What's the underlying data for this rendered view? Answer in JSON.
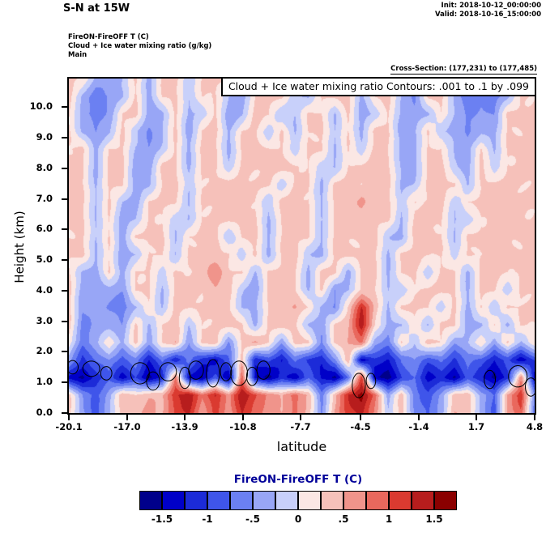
{
  "header": {
    "title": "S-N at 15W",
    "init_line": "Init: 2018-10-12_00:00:00",
    "valid_line": "Valid: 2018-10-16_15:00:00",
    "field_line1": "FireON-FireOFF T   (C)",
    "field_line2": "Cloud + Ice water mixing ratio   (g/kg)",
    "field_line3": "Main",
    "cross_section": "Cross-Section: (177,231) to (177,485)"
  },
  "plot": {
    "contour_note": "Cloud + Ice water mixing ratio Contours: .001 to .1 by .099",
    "xlabel": "latitude",
    "ylabel": "Height (km)",
    "x_ticks": [
      "-20.1",
      "-17.0",
      "-13.9",
      "-10.8",
      "-7.7",
      "-4.5",
      "-1.4",
      "1.7",
      "4.8"
    ],
    "y_ticks": [
      "0.0",
      "1.0",
      "2.0",
      "3.0",
      "4.0",
      "5.0",
      "6.0",
      "7.0",
      "8.0",
      "9.0",
      "10.0"
    ]
  },
  "colorbar": {
    "title": "FireON-FireOFF T  (C)",
    "labels": [
      "-1.5",
      "-1",
      "-.5",
      "0",
      ".5",
      "1",
      "1.5"
    ],
    "colors": [
      "#00008b",
      "#0000c8",
      "#1c2bd8",
      "#3f55ea",
      "#6b80f2",
      "#98a6f6",
      "#c8d0fa",
      "#fbe7e4",
      "#f6c1ba",
      "#f0948b",
      "#e9685d",
      "#da3a30",
      "#b71d1d",
      "#8b0000"
    ]
  },
  "chart_data": {
    "type": "heatmap",
    "title": "FireON-FireOFF T (C), S-N cross-section at 15W",
    "xlabel": "latitude",
    "ylabel": "Height (km)",
    "x_range": [
      -20.1,
      4.8
    ],
    "y_range": [
      0,
      10.94
    ],
    "levels": [
      -1.5,
      -1.25,
      -1.0,
      -0.75,
      -0.5,
      -0.25,
      0,
      0.25,
      0.5,
      0.75,
      1.0,
      1.25,
      1.5
    ],
    "units": "C",
    "grid_note": "values[row][col]; row 0 = top of plot (10.94 km), last row = surface; col 0 = lat -20.1, last col = lat 4.8",
    "values": [
      [
        0.3,
        0.2,
        -0.3,
        -0.4,
        -0.3,
        0.3,
        -0.3,
        0.3,
        0.3,
        -0.2,
        0.3,
        0.3,
        0.3,
        -0.3,
        0.3,
        0.3,
        0.3,
        0.3,
        -0.2,
        0.3,
        0.3,
        0.3,
        -0.3,
        0.3,
        0.3,
        -0.4,
        -0.3,
        0.3,
        0.3,
        -0.4,
        -0.6,
        -0.4,
        -0.6,
        -0.5,
        0.3,
        0.3
      ],
      [
        0.3,
        -0.3,
        -0.6,
        -0.5,
        -0.3,
        0.3,
        -0.4,
        0.3,
        0.3,
        -0.3,
        0.3,
        0.3,
        -0.3,
        -0.4,
        0.3,
        0.3,
        0.3,
        -0.2,
        -0.3,
        0.3,
        0.3,
        0.3,
        -0.3,
        0.3,
        0.3,
        -0.3,
        -0.5,
        0.3,
        0.3,
        -0.3,
        -0.7,
        -0.5,
        -0.6,
        -0.4,
        0.3,
        0.3
      ],
      [
        0.3,
        -0.4,
        -0.7,
        -0.4,
        0.3,
        0.3,
        -0.4,
        -0.3,
        0.3,
        -0.3,
        -0.2,
        0.3,
        -0.4,
        -0.3,
        0.3,
        0.3,
        -0.2,
        -0.3,
        0.3,
        0.3,
        -0.3,
        0.3,
        -0.4,
        -0.2,
        0.3,
        -0.3,
        -0.5,
        -0.3,
        0.3,
        -0.3,
        -0.6,
        -0.4,
        -0.5,
        0.3,
        0.3,
        0.3
      ],
      [
        0.3,
        -0.3,
        -0.5,
        -0.3,
        0.3,
        -0.2,
        -0.5,
        -0.3,
        0.3,
        -0.4,
        0.3,
        0.3,
        -0.3,
        0.3,
        0.3,
        -0.2,
        0.3,
        -0.3,
        0.3,
        0.3,
        -0.3,
        0.3,
        -0.3,
        0.3,
        0.3,
        -0.4,
        -0.3,
        0.3,
        -0.2,
        -0.4,
        -0.5,
        -0.3,
        -0.4,
        0.3,
        0.3,
        0.3
      ],
      [
        0.3,
        0.3,
        -0.4,
        0.3,
        0.3,
        -0.3,
        -0.5,
        -0.2,
        0.3,
        -0.3,
        0.3,
        0.3,
        -0.3,
        0.3,
        0.3,
        0.3,
        0.3,
        -0.2,
        0.3,
        0.3,
        -0.3,
        0.3,
        -0.2,
        0.3,
        0.3,
        -0.3,
        -0.4,
        0.3,
        0.3,
        -0.3,
        -0.4,
        0.3,
        -0.3,
        0.3,
        0.3,
        0.3
      ],
      [
        0.3,
        0.3,
        -0.3,
        0.3,
        0.3,
        -0.4,
        -0.4,
        0.3,
        0.3,
        -0.3,
        0.3,
        0.3,
        -0.2,
        0.3,
        0.3,
        0.3,
        0.3,
        0.3,
        0.3,
        -0.2,
        -0.3,
        0.3,
        0.3,
        0.3,
        0.3,
        -0.3,
        -0.3,
        0.3,
        0.3,
        -0.2,
        -0.3,
        0.3,
        -0.2,
        0.3,
        0.3,
        0.3
      ],
      [
        0.3,
        0.3,
        -0.3,
        0.3,
        0.3,
        -0.4,
        -0.3,
        0.3,
        0.3,
        -0.2,
        0.3,
        0.3,
        0.3,
        0.3,
        0.3,
        0.3,
        -0.2,
        0.3,
        0.3,
        -0.3,
        0.3,
        0.3,
        0.3,
        0.4,
        0.3,
        -0.3,
        -0.2,
        0.3,
        0.3,
        0.3,
        -0.3,
        0.3,
        0.3,
        0.3,
        0.3,
        0.3
      ],
      [
        0.3,
        0.3,
        -0.2,
        0.3,
        -0.3,
        -0.4,
        0.3,
        0.3,
        0.3,
        -0.3,
        0.3,
        0.3,
        0.3,
        0.3,
        0.3,
        -0.2,
        0.3,
        0.3,
        0.3,
        -0.3,
        0.3,
        0.3,
        0.6,
        0.3,
        0.3,
        -0.2,
        0.3,
        0.3,
        0.3,
        -0.2,
        0.3,
        0.3,
        0.3,
        0.3,
        0.3,
        0.3
      ],
      [
        0.3,
        0.3,
        -0.3,
        0.3,
        -0.4,
        -0.3,
        0.3,
        0.3,
        -0.2,
        -0.3,
        0.3,
        0.3,
        0.3,
        0.3,
        0.3,
        -0.3,
        0.3,
        0.3,
        0.3,
        -0.2,
        0.3,
        0.3,
        0.4,
        0.3,
        0.3,
        -0.3,
        0.3,
        0.3,
        0.3,
        -0.3,
        -0.2,
        0.3,
        0.3,
        0.3,
        0.3,
        0.3
      ],
      [
        0.3,
        0.3,
        -0.3,
        0.3,
        -0.4,
        0.3,
        0.3,
        0.3,
        -0.3,
        0.3,
        0.3,
        0.3,
        -0.2,
        0.3,
        0.3,
        -0.3,
        0.3,
        0.3,
        0.3,
        -0.3,
        0.3,
        0.3,
        0.3,
        0.3,
        -0.2,
        -0.3,
        0.3,
        0.3,
        0.3,
        -0.3,
        0.3,
        0.3,
        0.3,
        0.3,
        0.3,
        0.3
      ],
      [
        0.3,
        0.3,
        -0.3,
        0.3,
        -0.5,
        -0.3,
        0.3,
        0.3,
        -0.3,
        0.3,
        0.3,
        0.3,
        0.3,
        -0.2,
        0.3,
        -0.3,
        0.3,
        0.3,
        -0.2,
        -0.3,
        0.3,
        0.3,
        0.3,
        0.3,
        -0.3,
        0.3,
        0.3,
        0.3,
        0.3,
        -0.2,
        0.3,
        0.3,
        0.3,
        0.3,
        0.3,
        0.3
      ],
      [
        0.3,
        -0.3,
        -0.4,
        0.3,
        -0.4,
        0.3,
        0.3,
        -0.2,
        0.3,
        0.3,
        0.3,
        0.7,
        0.3,
        0.3,
        -0.3,
        0.3,
        0.3,
        0.3,
        -0.3,
        0.3,
        0.3,
        -0.3,
        0.3,
        0.3,
        -0.3,
        0.3,
        0.3,
        -0.2,
        0.3,
        0.3,
        -0.3,
        0.3,
        0.3,
        0.3,
        0.3,
        0.3
      ],
      [
        0.3,
        -0.4,
        -0.3,
        -0.4,
        -0.5,
        0.3,
        0.3,
        -0.3,
        0.3,
        0.3,
        0.3,
        0.5,
        0.3,
        -0.2,
        -0.4,
        0.3,
        0.3,
        0.3,
        -0.3,
        0.3,
        -0.5,
        -0.3,
        0.3,
        0.3,
        -0.3,
        -0.2,
        0.3,
        0.3,
        0.3,
        0.3,
        -0.3,
        0.3,
        0.3,
        -0.2,
        0.3,
        0.3
      ],
      [
        0.3,
        -0.5,
        -0.3,
        -0.5,
        -0.7,
        -0.3,
        0.3,
        -0.3,
        0.3,
        0.3,
        0.3,
        0.3,
        0.3,
        -0.3,
        -0.3,
        0.3,
        0.3,
        0.5,
        0.3,
        -0.3,
        -0.6,
        0.3,
        1.3,
        0.4,
        -0.3,
        0.3,
        0.3,
        0.3,
        -0.2,
        0.3,
        -0.3,
        0.3,
        -0.3,
        0.3,
        0.3,
        0.3
      ],
      [
        0.3,
        -0.6,
        -0.4,
        -0.4,
        -0.5,
        0.3,
        -0.3,
        0.3,
        0.4,
        -0.3,
        0.3,
        0.3,
        0.3,
        0.3,
        -0.3,
        0.3,
        0.4,
        0.3,
        -0.3,
        -0.4,
        0.3,
        0.4,
        1.5,
        0.3,
        -0.4,
        -0.3,
        0.3,
        -0.3,
        0.3,
        0.3,
        -0.4,
        -0.3,
        0.3,
        -0.4,
        0.3,
        0.3
      ],
      [
        0.2,
        -0.7,
        -0.4,
        0.3,
        -0.3,
        0.3,
        -0.4,
        0.3,
        0.5,
        -0.5,
        0.3,
        0.4,
        -0.5,
        0.3,
        0.5,
        0.3,
        -0.4,
        0.3,
        0.3,
        -0.5,
        0.3,
        0.5,
        0.8,
        -0.4,
        -0.6,
        0.3,
        -0.3,
        0.4,
        0.3,
        -0.5,
        -0.3,
        0.3,
        -0.4,
        0.3,
        -0.3,
        0.2
      ],
      [
        -0.4,
        -1.1,
        -0.7,
        -0.5,
        -0.9,
        -0.6,
        -1.2,
        -0.7,
        -1.3,
        -0.6,
        -1.1,
        -1.4,
        -0.8,
        0.4,
        -1.2,
        -0.9,
        -1.3,
        -0.7,
        -1.0,
        -1.2,
        -0.6,
        0.5,
        -1.4,
        -1.1,
        -1.3,
        -0.7,
        -0.5,
        -0.9,
        -0.7,
        -1.1,
        -0.6,
        -0.8,
        -1.3,
        -0.9,
        -1.4,
        -1.0
      ],
      [
        -1.3,
        -1.6,
        -1.2,
        -0.8,
        -1.4,
        -1.0,
        -1.6,
        -1.2,
        0.8,
        -1.3,
        -1.6,
        -0.9,
        -1.5,
        0.9,
        -1.4,
        -1.6,
        -1.1,
        -1.5,
        -0.8,
        -1.3,
        -1.6,
        -0.7,
        1.1,
        -1.5,
        -1.6,
        -1.0,
        -0.8,
        -1.4,
        -1.1,
        -1.6,
        -0.9,
        -1.2,
        -1.6,
        -1.1,
        0.7,
        -1.4
      ],
      [
        0.3,
        -0.5,
        -0.8,
        -0.4,
        0.4,
        0.3,
        0.5,
        0.4,
        1.2,
        1.5,
        0.8,
        1.3,
        0.6,
        1.5,
        1.1,
        0.7,
        0.4,
        0.9,
        0.5,
        -0.7,
        0.4,
        1.3,
        1.6,
        0.9,
        -0.4,
        0.4,
        -0.6,
        -0.9,
        -0.5,
        0.4,
        0.5,
        -0.4,
        -0.8,
        0.6,
        1.2,
        -0.5
      ],
      [
        0.3,
        -0.4,
        -0.9,
        -0.3,
        0.4,
        0.4,
        0.6,
        0.5,
        1.0,
        1.3,
        0.6,
        1.1,
        0.5,
        1.3,
        0.9,
        0.6,
        0.5,
        0.8,
        0.4,
        -0.5,
        0.5,
        1.1,
        1.4,
        0.7,
        -0.3,
        0.4,
        -0.5,
        -0.8,
        -0.4,
        0.5,
        0.4,
        -0.3,
        -0.9,
        0.5,
        1.0,
        -0.6
      ]
    ],
    "cloud_contours": {
      "note": "closed .001 g/kg cloud+ice mixing ratio contour cells (black outlines)",
      "blobs": [
        {
          "lat": -19.9,
          "km": 1.5,
          "rx": 0.3,
          "ry": 0.22
        },
        {
          "lat": -18.9,
          "km": 1.45,
          "rx": 0.45,
          "ry": 0.25
        },
        {
          "lat": -18.1,
          "km": 1.3,
          "rx": 0.3,
          "ry": 0.22
        },
        {
          "lat": -16.3,
          "km": 1.3,
          "rx": 0.5,
          "ry": 0.35
        },
        {
          "lat": -15.6,
          "km": 1.05,
          "rx": 0.35,
          "ry": 0.3
        },
        {
          "lat": -14.8,
          "km": 1.35,
          "rx": 0.45,
          "ry": 0.3
        },
        {
          "lat": -13.9,
          "km": 1.15,
          "rx": 0.3,
          "ry": 0.35
        },
        {
          "lat": -13.3,
          "km": 1.4,
          "rx": 0.4,
          "ry": 0.3
        },
        {
          "lat": -12.4,
          "km": 1.3,
          "rx": 0.35,
          "ry": 0.45
        },
        {
          "lat": -11.7,
          "km": 1.35,
          "rx": 0.3,
          "ry": 0.3
        },
        {
          "lat": -11.0,
          "km": 1.3,
          "rx": 0.45,
          "ry": 0.4
        },
        {
          "lat": -10.3,
          "km": 1.2,
          "rx": 0.3,
          "ry": 0.3
        },
        {
          "lat": -9.7,
          "km": 1.4,
          "rx": 0.35,
          "ry": 0.3
        },
        {
          "lat": -4.6,
          "km": 0.9,
          "rx": 0.35,
          "ry": 0.4
        },
        {
          "lat": -3.95,
          "km": 1.05,
          "rx": 0.25,
          "ry": 0.25
        },
        {
          "lat": 2.4,
          "km": 1.1,
          "rx": 0.3,
          "ry": 0.3
        },
        {
          "lat": 3.9,
          "km": 1.2,
          "rx": 0.5,
          "ry": 0.35
        },
        {
          "lat": 4.6,
          "km": 0.85,
          "rx": 0.3,
          "ry": 0.3
        }
      ]
    }
  }
}
